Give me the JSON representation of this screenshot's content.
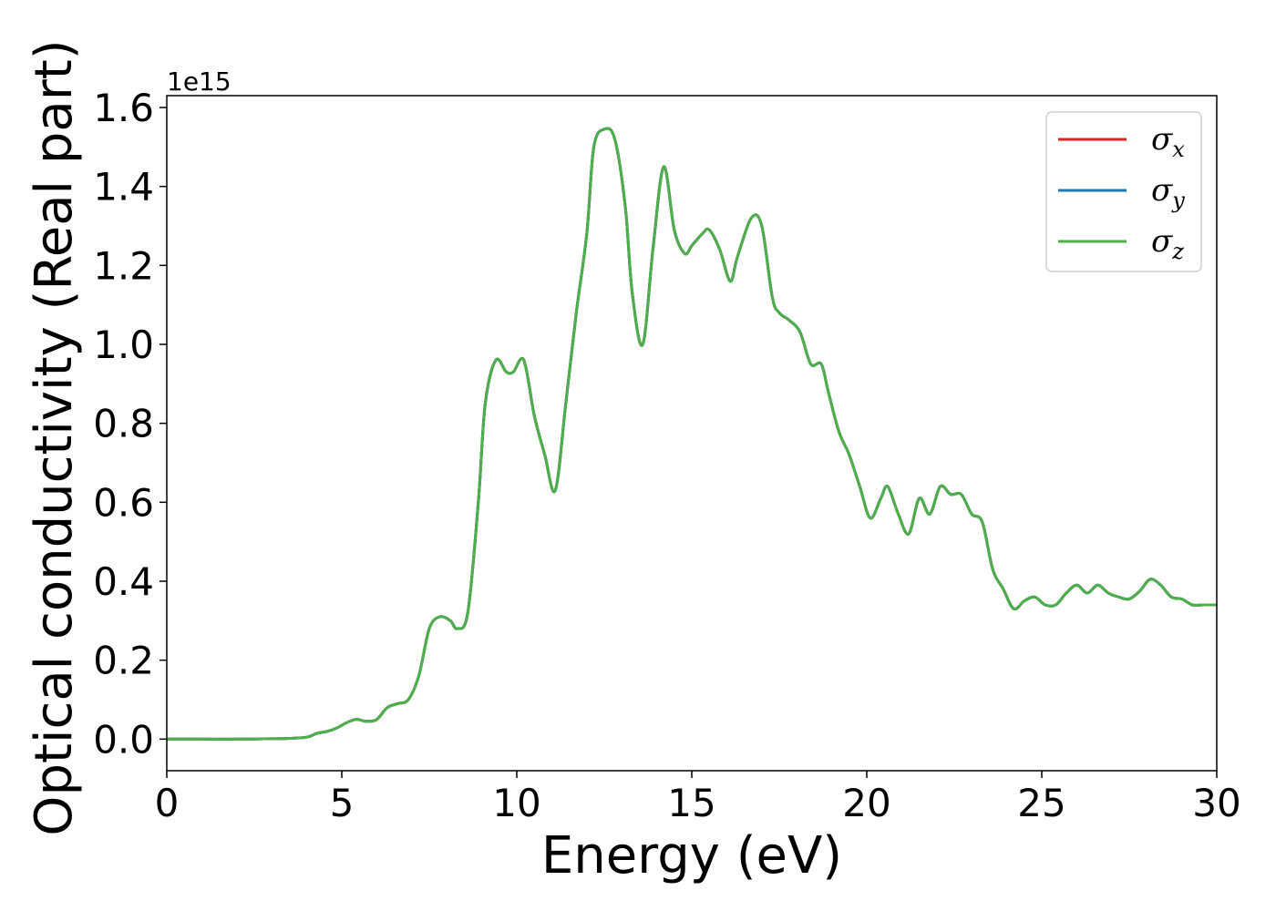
{
  "chart_data": {
    "type": "line",
    "xlabel": "Energy (eV)",
    "ylabel": "Optical conductivity (Real part)",
    "y_offset_text": "1e15",
    "xlim": [
      0,
      30
    ],
    "ylim": [
      -0.08,
      1.63
    ],
    "x_ticks": [
      0,
      5,
      10,
      15,
      20,
      25,
      30
    ],
    "x_tick_labels": [
      "0",
      "5",
      "10",
      "15",
      "20",
      "25",
      "30"
    ],
    "y_ticks": [
      0.0,
      0.2,
      0.4,
      0.6,
      0.8,
      1.0,
      1.2,
      1.4,
      1.6
    ],
    "y_tick_labels": [
      "0.0",
      "0.2",
      "0.4",
      "0.6",
      "0.8",
      "1.0",
      "1.2",
      "1.4",
      "1.6"
    ],
    "grid": false,
    "legend_position": "top-right",
    "colors": {
      "sigma_x": "#d62728",
      "sigma_y": "#1f77b4",
      "sigma_z": "#4daf4a"
    },
    "series": [
      {
        "name": "σx",
        "symbol": "σ",
        "subscript": "x",
        "color": "#d62728"
      },
      {
        "name": "σy",
        "symbol": "σ",
        "subscript": "y",
        "color": "#1f77b4"
      },
      {
        "name": "σz",
        "symbol": "σ",
        "subscript": "z",
        "color": "#4daf4a"
      }
    ],
    "x": [
      0,
      1,
      2,
      3,
      3.5,
      4,
      4.3,
      4.6,
      4.9,
      5.1,
      5.4,
      5.7,
      6.0,
      6.3,
      6.6,
      6.9,
      7.2,
      7.5,
      7.8,
      8.1,
      8.3,
      8.6,
      8.9,
      9.1,
      9.4,
      9.7,
      9.9,
      10.2,
      10.5,
      10.8,
      11.1,
      11.4,
      11.7,
      12.0,
      12.2,
      12.5,
      12.8,
      13.1,
      13.3,
      13.6,
      13.9,
      14.2,
      14.5,
      14.8,
      15.0,
      15.3,
      15.5,
      15.8,
      16.1,
      16.3,
      16.7,
      17.0,
      17.3,
      17.5,
      17.8,
      18.1,
      18.4,
      18.7,
      18.9,
      19.2,
      19.5,
      19.8,
      20.1,
      20.4,
      20.6,
      20.9,
      21.2,
      21.5,
      21.8,
      22.1,
      22.4,
      22.7,
      23.0,
      23.3,
      23.6,
      23.9,
      24.2,
      24.5,
      24.8,
      25.1,
      25.4,
      25.7,
      26.0,
      26.3,
      26.6,
      26.9,
      27.2,
      27.5,
      27.8,
      28.1,
      28.4,
      28.7,
      29.0,
      29.3,
      29.6,
      30.0
    ],
    "y": [
      0.0,
      0.0,
      0.0,
      0.001,
      0.002,
      0.005,
      0.015,
      0.02,
      0.03,
      0.04,
      0.05,
      0.045,
      0.05,
      0.08,
      0.09,
      0.1,
      0.16,
      0.28,
      0.31,
      0.3,
      0.28,
      0.32,
      0.6,
      0.85,
      0.96,
      0.93,
      0.93,
      0.96,
      0.82,
      0.72,
      0.63,
      0.85,
      1.08,
      1.28,
      1.5,
      1.545,
      1.52,
      1.35,
      1.13,
      1.0,
      1.25,
      1.45,
      1.29,
      1.23,
      1.25,
      1.28,
      1.29,
      1.24,
      1.16,
      1.22,
      1.32,
      1.3,
      1.12,
      1.08,
      1.06,
      1.03,
      0.95,
      0.95,
      0.88,
      0.78,
      0.72,
      0.64,
      0.56,
      0.61,
      0.64,
      0.57,
      0.52,
      0.61,
      0.57,
      0.64,
      0.62,
      0.62,
      0.57,
      0.55,
      0.43,
      0.38,
      0.33,
      0.35,
      0.36,
      0.34,
      0.34,
      0.37,
      0.39,
      0.37,
      0.39,
      0.37,
      0.36,
      0.355,
      0.375,
      0.405,
      0.39,
      0.36,
      0.355,
      0.34,
      0.34,
      0.34
    ]
  }
}
